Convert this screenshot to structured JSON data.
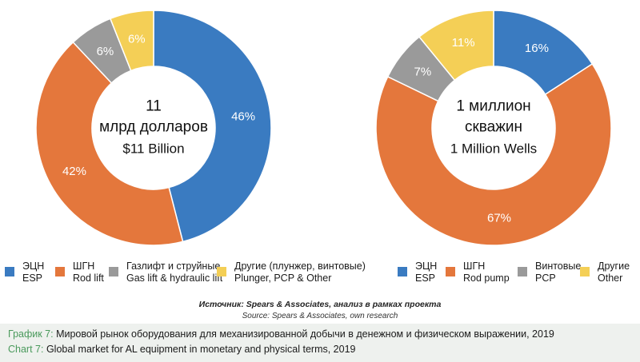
{
  "chart_data": [
    {
      "type": "donut",
      "center": {
        "line1": "11",
        "line2": "млрд долларов",
        "line3": "$11 Billion"
      },
      "slices": [
        {
          "name": "ESP",
          "value": 46,
          "label": "46%",
          "color": "#3a7bc1"
        },
        {
          "name": "Rod lift",
          "value": 42,
          "label": "42%",
          "color": "#e4773c"
        },
        {
          "name": "Gas lift & hydraulic lift",
          "value": 6,
          "label": "6%",
          "color": "#9a9a9a"
        },
        {
          "name": "Plunger, PCP & Other",
          "value": 6,
          "label": "6%",
          "color": "#f4cf56"
        }
      ],
      "legend": [
        {
          "ru": "ЭЦН",
          "en": "ESP",
          "color": "#3a7bc1"
        },
        {
          "ru": "ШГН",
          "en": "Rod lift",
          "color": "#e4773c"
        },
        {
          "ru": "Газлифт и струйные",
          "en": "Gas lift & hydraulic lift",
          "color": "#9a9a9a"
        },
        {
          "ru": "Другие (плунжер, винтовые)",
          "en": "Plunger, PCP & Other",
          "color": "#f4cf56"
        }
      ]
    },
    {
      "type": "donut",
      "center": {
        "line1": "1 миллион",
        "line2": "скважин",
        "line3": "1 Million Wells"
      },
      "slices": [
        {
          "name": "ESP",
          "value": 16,
          "label": "16%",
          "color": "#3a7bc1"
        },
        {
          "name": "Rod pump",
          "value": 67,
          "label": "67%",
          "color": "#e4773c"
        },
        {
          "name": "PCP",
          "value": 7,
          "label": "7%",
          "color": "#9a9a9a"
        },
        {
          "name": "Other",
          "value": 11,
          "label": "11%",
          "color": "#f4cf56"
        }
      ],
      "legend": [
        {
          "ru": "ЭЦН",
          "en": "ESP",
          "color": "#3a7bc1"
        },
        {
          "ru": "ШГН",
          "en": "Rod pump",
          "color": "#e4773c"
        },
        {
          "ru": "Винтовые",
          "en": "PCP",
          "color": "#9a9a9a"
        },
        {
          "ru": "Другие",
          "en": "Other",
          "color": "#f4cf56"
        }
      ]
    }
  ],
  "source": {
    "ru": "Источник: Spears & Associates, анализ в рамках проекта",
    "en": "Source: Spears & Associates, own research"
  },
  "caption": {
    "ru_prefix": "График 7:",
    "ru_text": " Мировой рынок оборудования для механизированной добычи в денежном и физическом выражении, 2019",
    "en_prefix": "Chart 7:",
    "en_text": " Global market for AL equipment in monetary and physical terms, 2019"
  }
}
